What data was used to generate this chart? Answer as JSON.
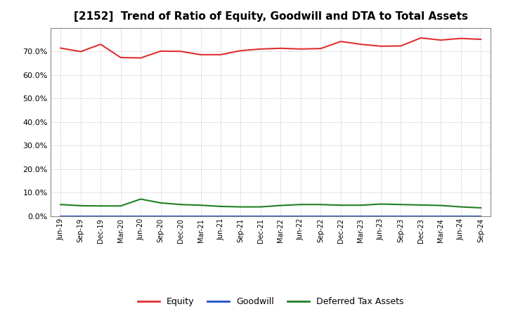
{
  "title": "[2152]  Trend of Ratio of Equity, Goodwill and DTA to Total Assets",
  "x_labels": [
    "Jun-19",
    "Sep-19",
    "Dec-19",
    "Mar-20",
    "Jun-20",
    "Sep-20",
    "Dec-20",
    "Mar-21",
    "Jun-21",
    "Sep-21",
    "Dec-21",
    "Mar-22",
    "Jun-22",
    "Sep-22",
    "Dec-22",
    "Mar-23",
    "Jun-23",
    "Sep-23",
    "Dec-23",
    "Mar-24",
    "Jun-24",
    "Sep-24"
  ],
  "equity": [
    0.714,
    0.699,
    0.73,
    0.674,
    0.672,
    0.701,
    0.7,
    0.686,
    0.686,
    0.703,
    0.71,
    0.713,
    0.71,
    0.712,
    0.742,
    0.73,
    0.722,
    0.723,
    0.757,
    0.748,
    0.755,
    0.751
  ],
  "goodwill": [
    0.001,
    0.001,
    0.001,
    0.001,
    0.001,
    0.001,
    0.001,
    0.001,
    0.001,
    0.001,
    0.001,
    0.001,
    0.001,
    0.001,
    0.001,
    0.001,
    0.001,
    0.001,
    0.001,
    0.001,
    0.001,
    0.001
  ],
  "dta": [
    0.05,
    0.045,
    0.044,
    0.044,
    0.073,
    0.057,
    0.05,
    0.047,
    0.042,
    0.04,
    0.04,
    0.046,
    0.05,
    0.05,
    0.047,
    0.047,
    0.052,
    0.05,
    0.048,
    0.046,
    0.04,
    0.036
  ],
  "equity_color": "#e03030",
  "goodwill_color": "#2050c0",
  "dta_color": "#208020",
  "bg_color": "#ffffff",
  "plot_bg_color": "#ffffff",
  "grid_color": "#999999",
  "ylim": [
    0.0,
    0.8
  ],
  "yticks": [
    0.0,
    0.1,
    0.2,
    0.3,
    0.4,
    0.5,
    0.6,
    0.7
  ],
  "title_fontsize": 11,
  "legend_labels": [
    "Equity",
    "Goodwill",
    "Deferred Tax Assets"
  ]
}
